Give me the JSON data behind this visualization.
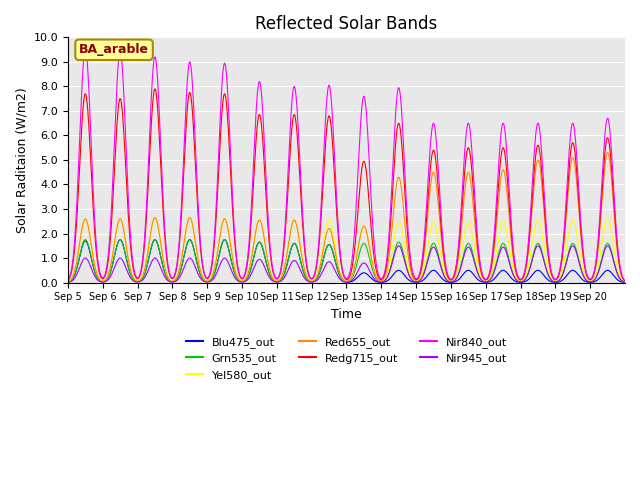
{
  "title": "Reflected Solar Bands",
  "xlabel": "Time",
  "ylabel": "Solar Raditaion (W/m2)",
  "ylim": [
    0,
    10.0
  ],
  "background_color": "#e8e8e8",
  "annotation_text": "BA_arable",
  "annotation_bg": "#ffff99",
  "annotation_border": "#aa8800",
  "xtick_labels": [
    "Sep 5",
    "Sep 6",
    "Sep 7",
    "Sep 8",
    "Sep 9",
    "Sep 10",
    "Sep 11",
    "Sep 12",
    "Sep 13",
    "Sep 14",
    "Sep 15",
    "Sep 16",
    "Sep 17",
    "Sep 18",
    "Sep 19",
    "Sep 20"
  ],
  "ytick_vals": [
    0.0,
    1.0,
    2.0,
    3.0,
    4.0,
    5.0,
    6.0,
    7.0,
    8.0,
    9.0,
    10.0
  ],
  "bands": {
    "Blu475_out": {
      "color": "#0000ff",
      "peaks": [
        1.7,
        1.75,
        1.75,
        1.75,
        1.75,
        1.65,
        1.6,
        1.55,
        0.4,
        0.5,
        0.5,
        0.5,
        0.5,
        0.5,
        0.5,
        0.5
      ]
    },
    "Grn535_out": {
      "color": "#00cc00",
      "peaks": [
        1.75,
        1.75,
        1.75,
        1.75,
        1.75,
        1.65,
        1.6,
        1.55,
        1.6,
        1.65,
        1.6,
        1.6,
        1.6,
        1.6,
        1.6,
        1.6
      ]
    },
    "Yel580_out": {
      "color": "#ffff00",
      "peaks": [
        2.6,
        2.6,
        2.65,
        2.65,
        2.6,
        2.55,
        2.55,
        2.55,
        2.3,
        2.5,
        2.45,
        2.45,
        2.5,
        2.55,
        2.55,
        2.6
      ]
    },
    "Red655_out": {
      "color": "#ff8800",
      "peaks": [
        2.6,
        2.6,
        2.65,
        2.65,
        2.6,
        2.55,
        2.55,
        2.2,
        2.3,
        4.3,
        4.5,
        4.5,
        4.6,
        5.0,
        5.1,
        5.3
      ]
    },
    "Redg715_out": {
      "color": "#ff0000",
      "peaks": [
        7.7,
        7.5,
        7.9,
        7.75,
        7.7,
        6.85,
        6.85,
        6.8,
        4.95,
        6.5,
        5.4,
        5.5,
        5.5,
        5.6,
        5.7,
        5.9
      ]
    },
    "Nir840_out": {
      "color": "#ff00ff",
      "peaks": [
        9.5,
        9.4,
        9.2,
        9.0,
        8.95,
        8.2,
        8.0,
        8.05,
        7.6,
        7.95,
        6.5,
        6.5,
        6.5,
        6.5,
        6.5,
        6.7
      ]
    },
    "Nir945_out": {
      "color": "#aa00ff",
      "peaks": [
        1.0,
        1.0,
        1.0,
        1.0,
        1.0,
        0.95,
        0.9,
        0.85,
        0.8,
        1.5,
        1.45,
        1.45,
        1.45,
        1.5,
        1.5,
        1.5
      ]
    }
  }
}
